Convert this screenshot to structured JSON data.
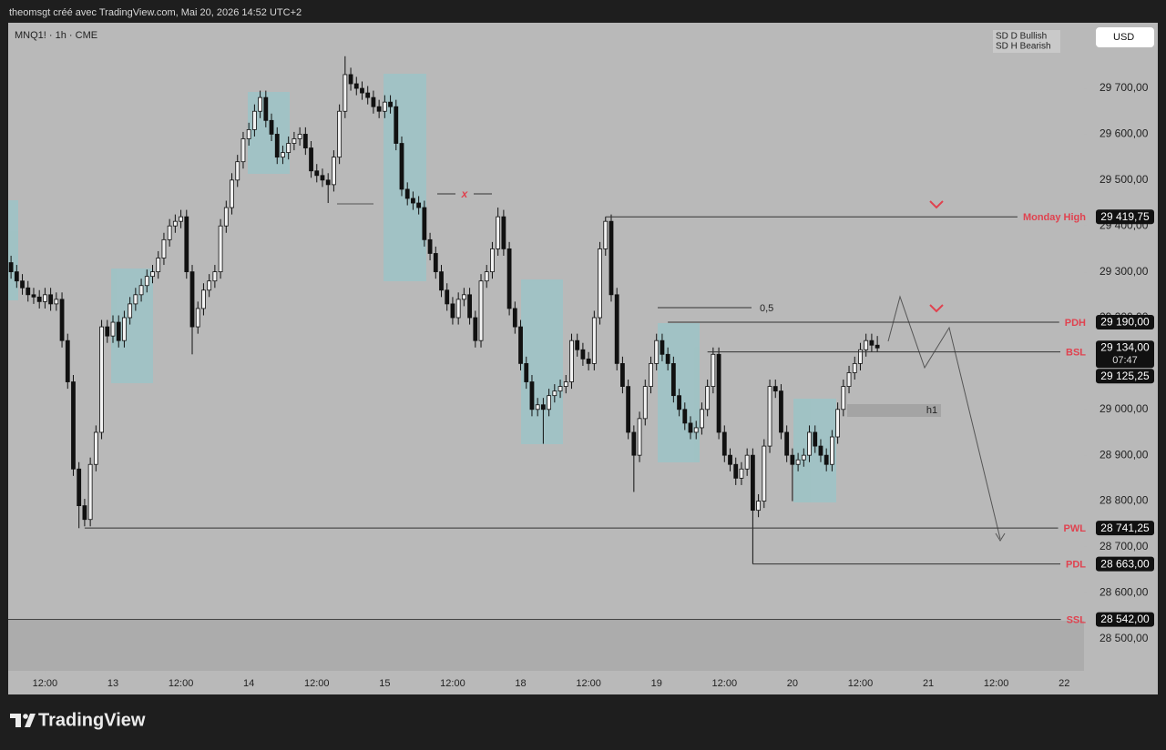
{
  "header": "theomsgt créé avec TradingView.com, Mai 20, 2026 14:52 UTC+2",
  "footer_logo": "TradingView",
  "chart_data": {
    "type": "candlestick",
    "symbol": "MNQ1! · 1h · CME",
    "currency": "USD",
    "legend": [
      "SD D Bullish",
      "SD H Bearish"
    ],
    "colors": {
      "up": "#f2f2f2",
      "down": "#111111",
      "outline": "#111111",
      "level_label": "#e0424f",
      "level_line": "#333333"
    },
    "x": [
      0,
      1,
      2,
      3,
      4,
      5,
      6,
      7,
      8,
      9,
      10,
      11,
      12,
      13,
      14,
      15,
      16,
      17,
      18,
      19,
      20,
      21,
      22,
      23,
      24,
      25,
      26,
      27,
      28,
      29,
      30,
      31,
      32,
      33,
      34,
      35,
      36,
      37,
      38,
      39,
      40,
      41,
      42,
      43,
      44,
      45,
      46,
      47,
      48,
      49,
      50,
      51,
      52,
      53,
      54,
      55,
      56,
      57,
      58,
      59,
      60,
      61,
      62,
      63,
      64,
      65,
      66,
      67,
      68,
      69,
      70,
      71,
      72,
      73,
      74,
      75,
      76,
      77,
      78,
      79,
      80,
      81,
      82,
      83,
      84,
      85,
      86,
      87,
      88,
      89,
      90,
      91,
      92,
      93,
      94,
      95,
      96,
      97,
      98,
      99,
      100,
      101,
      102,
      103,
      104,
      105,
      106,
      107,
      108,
      109,
      110,
      111,
      112,
      113,
      114,
      115,
      116,
      117,
      118,
      119,
      120,
      121,
      122,
      123,
      124,
      125,
      126,
      127,
      128,
      129,
      130,
      131,
      132,
      133,
      134,
      135,
      136,
      137,
      138,
      139,
      140,
      141,
      142,
      143,
      144,
      145,
      146,
      147,
      148,
      149,
      150,
      151,
      152,
      153
    ],
    "open": [
      29320,
      29300,
      29280,
      29265,
      29250,
      29245,
      29235,
      29250,
      29230,
      29240,
      29150,
      29060,
      28870,
      28790,
      28760,
      28880,
      28950,
      29180,
      29160,
      29190,
      29150,
      29200,
      29230,
      29250,
      29270,
      29290,
      29300,
      29330,
      29370,
      29400,
      29410,
      29420,
      29300,
      29180,
      29220,
      29260,
      29280,
      29300,
      29400,
      29440,
      29500,
      29540,
      29590,
      29610,
      29650,
      29680,
      29630,
      29600,
      29550,
      29560,
      29580,
      29590,
      29600,
      29570,
      29520,
      29510,
      29500,
      29490,
      29550,
      29650,
      29730,
      29710,
      29700,
      29690,
      29680,
      29660,
      29650,
      29670,
      29660,
      29580,
      29480,
      29460,
      29450,
      29440,
      29370,
      29340,
      29300,
      29260,
      29230,
      29200,
      29240,
      29250,
      29200,
      29150,
      29280,
      29300,
      29350,
      29420,
      29350,
      29220,
      29180,
      29100,
      29060,
      29000,
      29010,
      29000,
      29030,
      29040,
      29050,
      29060,
      29150,
      29130,
      29110,
      29100,
      29200,
      29350,
      29410,
      29250,
      29100,
      29050,
      28950,
      28900,
      28980,
      29050,
      29100,
      29150,
      29120,
      29100,
      29030,
      29000,
      28970,
      28950,
      28960,
      29000,
      29050,
      29120,
      28950,
      28900,
      28880,
      28850,
      28870,
      28900,
      28780,
      28800,
      28920,
      29050,
      29040,
      28950,
      28900,
      28880,
      28890,
      28900,
      28950,
      28920,
      28900,
      28880,
      28940,
      29000,
      29050,
      29080,
      29100,
      29130,
      29150,
      29140
    ],
    "high": [
      29335,
      29315,
      29295,
      29280,
      29265,
      29260,
      29265,
      29265,
      29255,
      29255,
      29165,
      29075,
      28885,
      28805,
      28895,
      28965,
      29195,
      29195,
      29205,
      29205,
      29215,
      29245,
      29265,
      29285,
      29305,
      29315,
      29345,
      29385,
      29415,
      29425,
      29435,
      29435,
      29315,
      29235,
      29275,
      29295,
      29315,
      29415,
      29455,
      29515,
      29555,
      29605,
      29625,
      29665,
      29695,
      29695,
      29645,
      29615,
      29575,
      29595,
      29605,
      29615,
      29615,
      29585,
      29535,
      29525,
      29515,
      29565,
      29665,
      29770,
      29745,
      29725,
      29715,
      29705,
      29695,
      29675,
      29685,
      29685,
      29675,
      29595,
      29495,
      29475,
      29465,
      29455,
      29385,
      29355,
      29315,
      29275,
      29245,
      29255,
      29265,
      29265,
      29215,
      29295,
      29315,
      29365,
      29440,
      29435,
      29365,
      29235,
      29195,
      29115,
      29075,
      29025,
      29025,
      29045,
      29055,
      29065,
      29075,
      29165,
      29165,
      29145,
      29125,
      29215,
      29365,
      29420,
      29425,
      29265,
      29115,
      29065,
      28965,
      28995,
      29065,
      29115,
      29165,
      29165,
      29135,
      29115,
      29045,
      29015,
      28985,
      28975,
      29015,
      29065,
      29135,
      29135,
      28965,
      28915,
      28895,
      28885,
      28915,
      28915,
      28815,
      28935,
      29065,
      29065,
      29055,
      28965,
      28915,
      28905,
      28915,
      28965,
      28965,
      28935,
      28915,
      28955,
      29015,
      29065,
      29095,
      29115,
      29145,
      29165,
      29165,
      29160
    ],
    "low": [
      29285,
      29265,
      29250,
      29235,
      29230,
      29220,
      29220,
      29215,
      29215,
      29135,
      29045,
      28855,
      28741,
      28745,
      28745,
      28865,
      28935,
      29145,
      29145,
      29135,
      29135,
      29185,
      29215,
      29235,
      29255,
      29275,
      29285,
      29315,
      29355,
      29385,
      29395,
      29285,
      29120,
      29165,
      29205,
      29245,
      29265,
      29285,
      29385,
      29425,
      29485,
      29525,
      29575,
      29595,
      29635,
      29615,
      29585,
      29535,
      29535,
      29545,
      29565,
      29575,
      29555,
      29505,
      29495,
      29485,
      29450,
      29475,
      29535,
      29635,
      29695,
      29685,
      29675,
      29665,
      29645,
      29635,
      29635,
      29645,
      29565,
      29465,
      29445,
      29435,
      29425,
      29355,
      29325,
      29285,
      29245,
      29215,
      29185,
      29185,
      29225,
      29185,
      29135,
      29135,
      29265,
      29285,
      29335,
      29335,
      29205,
      29165,
      29085,
      29045,
      28985,
      28985,
      28925,
      28985,
      29015,
      29025,
      29035,
      29045,
      29115,
      29095,
      29085,
      29085,
      29185,
      29335,
      29235,
      29085,
      29035,
      28935,
      28820,
      28885,
      28965,
      29035,
      29085,
      29105,
      29085,
      29015,
      28985,
      28955,
      28935,
      28935,
      28945,
      28985,
      29035,
      28935,
      28885,
      28865,
      28835,
      28835,
      28855,
      28663,
      28765,
      28785,
      28905,
      29025,
      28935,
      28885,
      28800,
      28865,
      28875,
      28885,
      28905,
      28885,
      28865,
      28865,
      28925,
      28985,
      29035,
      29065,
      29085,
      29115,
      29125,
      29125
    ],
    "close": [
      29300,
      29280,
      29265,
      29250,
      29245,
      29235,
      29250,
      29230,
      29240,
      29150,
      29060,
      28870,
      28790,
      28760,
      28880,
      28950,
      29180,
      29160,
      29190,
      29150,
      29200,
      29230,
      29250,
      29270,
      29290,
      29300,
      29330,
      29370,
      29400,
      29410,
      29420,
      29300,
      29180,
      29220,
      29260,
      29280,
      29300,
      29400,
      29440,
      29500,
      29540,
      29590,
      29610,
      29650,
      29680,
      29630,
      29600,
      29550,
      29560,
      29580,
      29590,
      29600,
      29570,
      29520,
      29510,
      29500,
      29490,
      29550,
      29650,
      29730,
      29710,
      29700,
      29690,
      29680,
      29660,
      29650,
      29670,
      29660,
      29580,
      29480,
      29460,
      29450,
      29440,
      29370,
      29340,
      29300,
      29260,
      29230,
      29200,
      29240,
      29250,
      29200,
      29150,
      29280,
      29300,
      29350,
      29420,
      29350,
      29220,
      29180,
      29100,
      29060,
      29000,
      29010,
      29000,
      29030,
      29040,
      29050,
      29060,
      29150,
      29130,
      29110,
      29100,
      29200,
      29350,
      29410,
      29250,
      29100,
      29050,
      28950,
      28900,
      28980,
      29050,
      29100,
      29150,
      29120,
      29100,
      29030,
      29000,
      28970,
      28950,
      28960,
      29000,
      29050,
      29120,
      28950,
      28900,
      28880,
      28850,
      28870,
      28900,
      28780,
      28800,
      28920,
      29050,
      29040,
      28950,
      28900,
      28880,
      28890,
      28900,
      28950,
      28920,
      28900,
      28880,
      28940,
      29000,
      29050,
      29080,
      29100,
      29130,
      29150,
      29140,
      29134
    ],
    "xlim": [
      -0.5,
      189.5
    ],
    "xticks": [
      {
        "value": 6,
        "label": "12:00"
      },
      {
        "value": 18,
        "label": "13"
      },
      {
        "value": 30,
        "label": "12:00"
      },
      {
        "value": 42,
        "label": "14"
      },
      {
        "value": 54,
        "label": "12:00"
      },
      {
        "value": 66,
        "label": "15"
      },
      {
        "value": 78,
        "label": "12:00"
      },
      {
        "value": 90,
        "label": "18"
      },
      {
        "value": 102,
        "label": "12:00"
      },
      {
        "value": 114,
        "label": "19"
      },
      {
        "value": 126,
        "label": "12:00"
      },
      {
        "value": 138,
        "label": "20"
      },
      {
        "value": 150,
        "label": "12:00"
      },
      {
        "value": 162,
        "label": "21"
      },
      {
        "value": 174,
        "label": "12:00"
      },
      {
        "value": 186,
        "label": "22"
      }
    ],
    "ylim": [
      28430,
      29843
    ],
    "yticks": [
      {
        "value": 28500,
        "label": "28 500,00"
      },
      {
        "value": 28600,
        "label": "28 600,00"
      },
      {
        "value": 28700,
        "label": "28 700,00"
      },
      {
        "value": 28800,
        "label": "28 800,00"
      },
      {
        "value": 28900,
        "label": "28 900,00"
      },
      {
        "value": 29000,
        "label": "29 000,00"
      },
      {
        "value": 29100,
        "label": "29 100,00"
      },
      {
        "value": 29200,
        "label": "29 200,00"
      },
      {
        "value": 29300,
        "label": "29 300,00"
      },
      {
        "value": 29400,
        "label": "29 400,00"
      },
      {
        "value": 29500,
        "label": "29 500,00"
      },
      {
        "value": 29600,
        "label": "29 600,00"
      },
      {
        "value": 29700,
        "label": "29 700,00"
      }
    ],
    "last_price": {
      "value": 29134,
      "label": "29 134,00"
    },
    "countdown": "07:47",
    "levels": [
      {
        "name": "Monday High",
        "value": 29419.75,
        "value_label": "29 419,75",
        "from": 105
      },
      {
        "name": "PDH",
        "value": 29190,
        "value_label": "29 190,00",
        "from": 116
      },
      {
        "name": "BSL",
        "value": 29125.25,
        "value_label": "29 125,25",
        "from": 123
      },
      {
        "name": "PWL",
        "value": 28741.25,
        "value_label": "28 741,25",
        "from": 13
      },
      {
        "name": "PDL",
        "value": 28663,
        "value_label": "28 663,00",
        "from": 131
      },
      {
        "name": "SSL",
        "value": 28542,
        "value_label": "28 542,00"
      }
    ],
    "annotations": [
      "0,5",
      "x",
      "h1"
    ]
  }
}
